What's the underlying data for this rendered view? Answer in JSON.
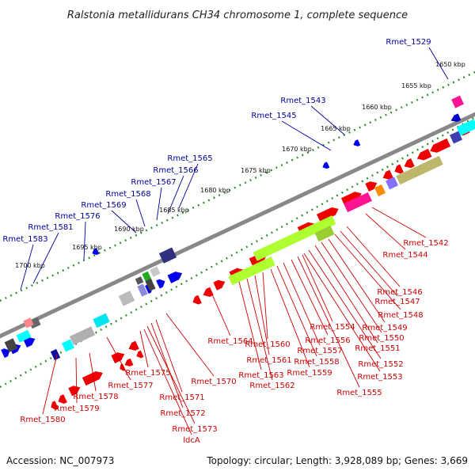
{
  "title": "Ralstonia metallidurans CH34 chromosome 1, complete sequence",
  "footer": {
    "accession": "Accession: NC_007973",
    "summary": "Topology: circular; Length: 3,928,089 bp; Genes: 3,669"
  },
  "scale_labels": [
    "1650 kbp",
    "1655 kbp",
    "1660 kbp",
    "1665 kbp",
    "1670 kbp",
    "1675 kbp",
    "1680 kbp",
    "1685 kbp",
    "1690 kbp",
    "1695 kbp",
    "1700 kbp"
  ],
  "top_labels": [
    "Rmet_1529",
    "Rmet_1543",
    "Rmet_1545",
    "Rmet_1565",
    "Rmet_1566",
    "Rmet_1567",
    "Rmet_1568",
    "Rmet_1569",
    "Rmet_1576",
    "Rmet_1581",
    "Rmet_1583"
  ],
  "bottom_labels": [
    "Rmet_1542",
    "Rmet_1544",
    "Rmet_1546",
    "Rmet_1547",
    "Rmet_1548",
    "Rmet_1549",
    "Rmet_1550",
    "Rmet_1551",
    "Rmet_1552",
    "Rmet_1553",
    "Rmet_1554",
    "Rmet_1555",
    "Rmet_1556",
    "Rmet_1557",
    "Rmet_1558",
    "Rmet_1559",
    "Rmet_1560",
    "Rmet_1561",
    "Rmet_1562",
    "Rmet_1563",
    "Rmet_1564",
    "Rmet_1570",
    "Rmet_1571",
    "Rmet_1572",
    "Rmet_1573",
    "ldcA",
    "Rmet_1575",
    "Rmet_1577",
    "Rmet_1578",
    "Rmet_1579",
    "Rmet_1580"
  ],
  "colors": {
    "forward_gene": "#ee0000",
    "reverse_gene": "#0000ee",
    "backbone": "#888888",
    "scale_dots": "#228b22",
    "top_label": "#000099",
    "bottom_label": "#cc0000"
  }
}
